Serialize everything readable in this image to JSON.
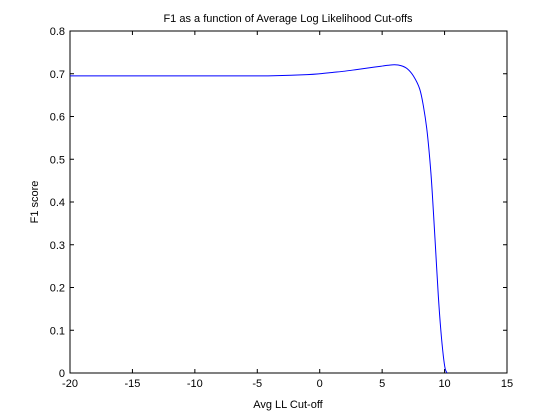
{
  "chart_data": {
    "type": "line",
    "title": "F1 as a function of Average Log Likelihood Cut-offs",
    "xlabel": "Avg LL Cut-off",
    "ylabel": "F1 score",
    "xlim": [
      -20,
      15
    ],
    "ylim": [
      0,
      0.8
    ],
    "xticks": [
      -20,
      -15,
      -10,
      -5,
      0,
      5,
      10,
      15
    ],
    "xtick_labels": [
      "-20",
      "-15",
      "-10",
      "-5",
      "0",
      "5",
      "10",
      "15"
    ],
    "yticks": [
      0,
      0.1,
      0.2,
      0.3,
      0.4,
      0.5,
      0.6,
      0.7,
      0.8
    ],
    "ytick_labels": [
      "0",
      "0.1",
      "0.2",
      "0.3",
      "0.4",
      "0.5",
      "0.6",
      "0.7",
      "0.8"
    ],
    "grid": false,
    "legend": "none",
    "series": [
      {
        "color": "#0000ff",
        "x": [
          -20,
          -15,
          -10,
          -5,
          -3,
          -1,
          0,
          1,
          2,
          3,
          4,
          5,
          5.5,
          6,
          6.5,
          7,
          7.5,
          8,
          8.3,
          8.6,
          8.9,
          9.1,
          9.3,
          9.5,
          9.7,
          9.9,
          10.05,
          10.2
        ],
        "y": [
          0.695,
          0.695,
          0.695,
          0.695,
          0.696,
          0.698,
          0.7,
          0.703,
          0.706,
          0.71,
          0.714,
          0.718,
          0.72,
          0.721,
          0.719,
          0.712,
          0.695,
          0.665,
          0.625,
          0.565,
          0.47,
          0.38,
          0.28,
          0.18,
          0.1,
          0.04,
          0.01,
          0.0
        ]
      }
    ]
  }
}
